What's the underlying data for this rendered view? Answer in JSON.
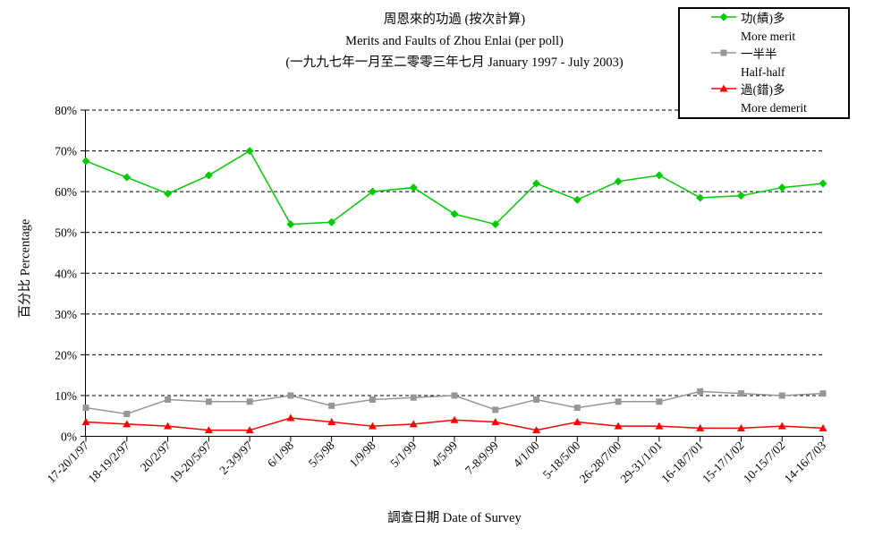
{
  "title": {
    "line1": "周恩來的功過 (按次計算)",
    "line2": "Merits and Faults of Zhou Enlai (per poll)",
    "line3": "(一九九七年一月至二零零三年七月 January 1997 - July 2003)"
  },
  "chart_data": {
    "type": "line",
    "title": "周恩來的功過 (按次計算) Merits and Faults of Zhou Enlai (per poll) (一九九七年一月至二零零三年七月 January 1997 - July 2003)",
    "xlabel": "調查日期 Date of Survey",
    "ylabel": "百分比 Percentage",
    "ylim": [
      0,
      80
    ],
    "ytick_step": 10,
    "ytick_labels": [
      "0%",
      "10%",
      "20%",
      "30%",
      "40%",
      "50%",
      "60%",
      "70%",
      "80%"
    ],
    "grid": "horizontal-dashed",
    "legend_position": "top-right",
    "categories": [
      "17-20/1/97",
      "18-19/2/97",
      "20/2/97",
      "19-20/5/97",
      "2-3/9/97",
      "6/1/98",
      "5/5/98",
      "1/9/98",
      "5/1/99",
      "4/5/99",
      "7-8/9/99",
      "4/1/00",
      "5-18/5/00",
      "26-28/7/00",
      "29-31/1/01",
      "16-18/7/01",
      "15-17/1/02",
      "10-15/7/02",
      "14-16/7/03"
    ],
    "series": [
      {
        "name": "功(績)多 More merit",
        "label_zh": "功(績)多",
        "label_en": "More merit",
        "color": "#00CC00",
        "marker": "diamond",
        "values": [
          67.5,
          63.5,
          59.5,
          64,
          70,
          52,
          52.5,
          60,
          61,
          54.5,
          52,
          62,
          58,
          62.5,
          64,
          58.5,
          59,
          61,
          62
        ]
      },
      {
        "name": "一半半 Half-half",
        "label_zh": "一半半",
        "label_en": "Half-half",
        "color": "#969696",
        "marker": "square",
        "values": [
          7,
          5.5,
          9,
          8.5,
          8.5,
          10,
          7.5,
          9,
          9.5,
          10,
          6.5,
          9,
          7,
          8.5,
          8.5,
          11,
          10.5,
          10,
          10.5
        ]
      },
      {
        "name": "過(錯)多 More demerit",
        "label_zh": "過(錯)多",
        "label_en": "More demerit",
        "color": "#FF0000",
        "marker": "triangle",
        "values": [
          3.5,
          3,
          2.5,
          1.5,
          1.5,
          4.5,
          3.5,
          2.5,
          3,
          4,
          3.5,
          1.5,
          3.5,
          2.5,
          2.5,
          2,
          2,
          2.5,
          2
        ]
      }
    ]
  }
}
